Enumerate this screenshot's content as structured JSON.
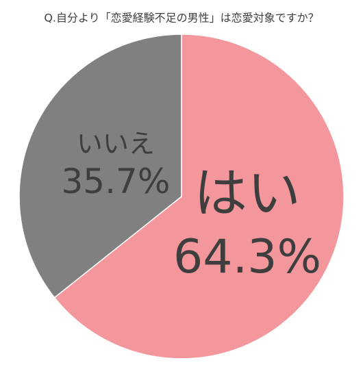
{
  "chart_data": {
    "type": "pie",
    "title": "Q.自分より「恋愛経験不足の男性」は恋愛対象ですか？",
    "categories": [
      "はい",
      "いいえ"
    ],
    "values": [
      64.3,
      35.7
    ],
    "value_labels": [
      "64.3%",
      "35.7%"
    ],
    "colors": [
      "#f4979c",
      "#808080"
    ]
  }
}
